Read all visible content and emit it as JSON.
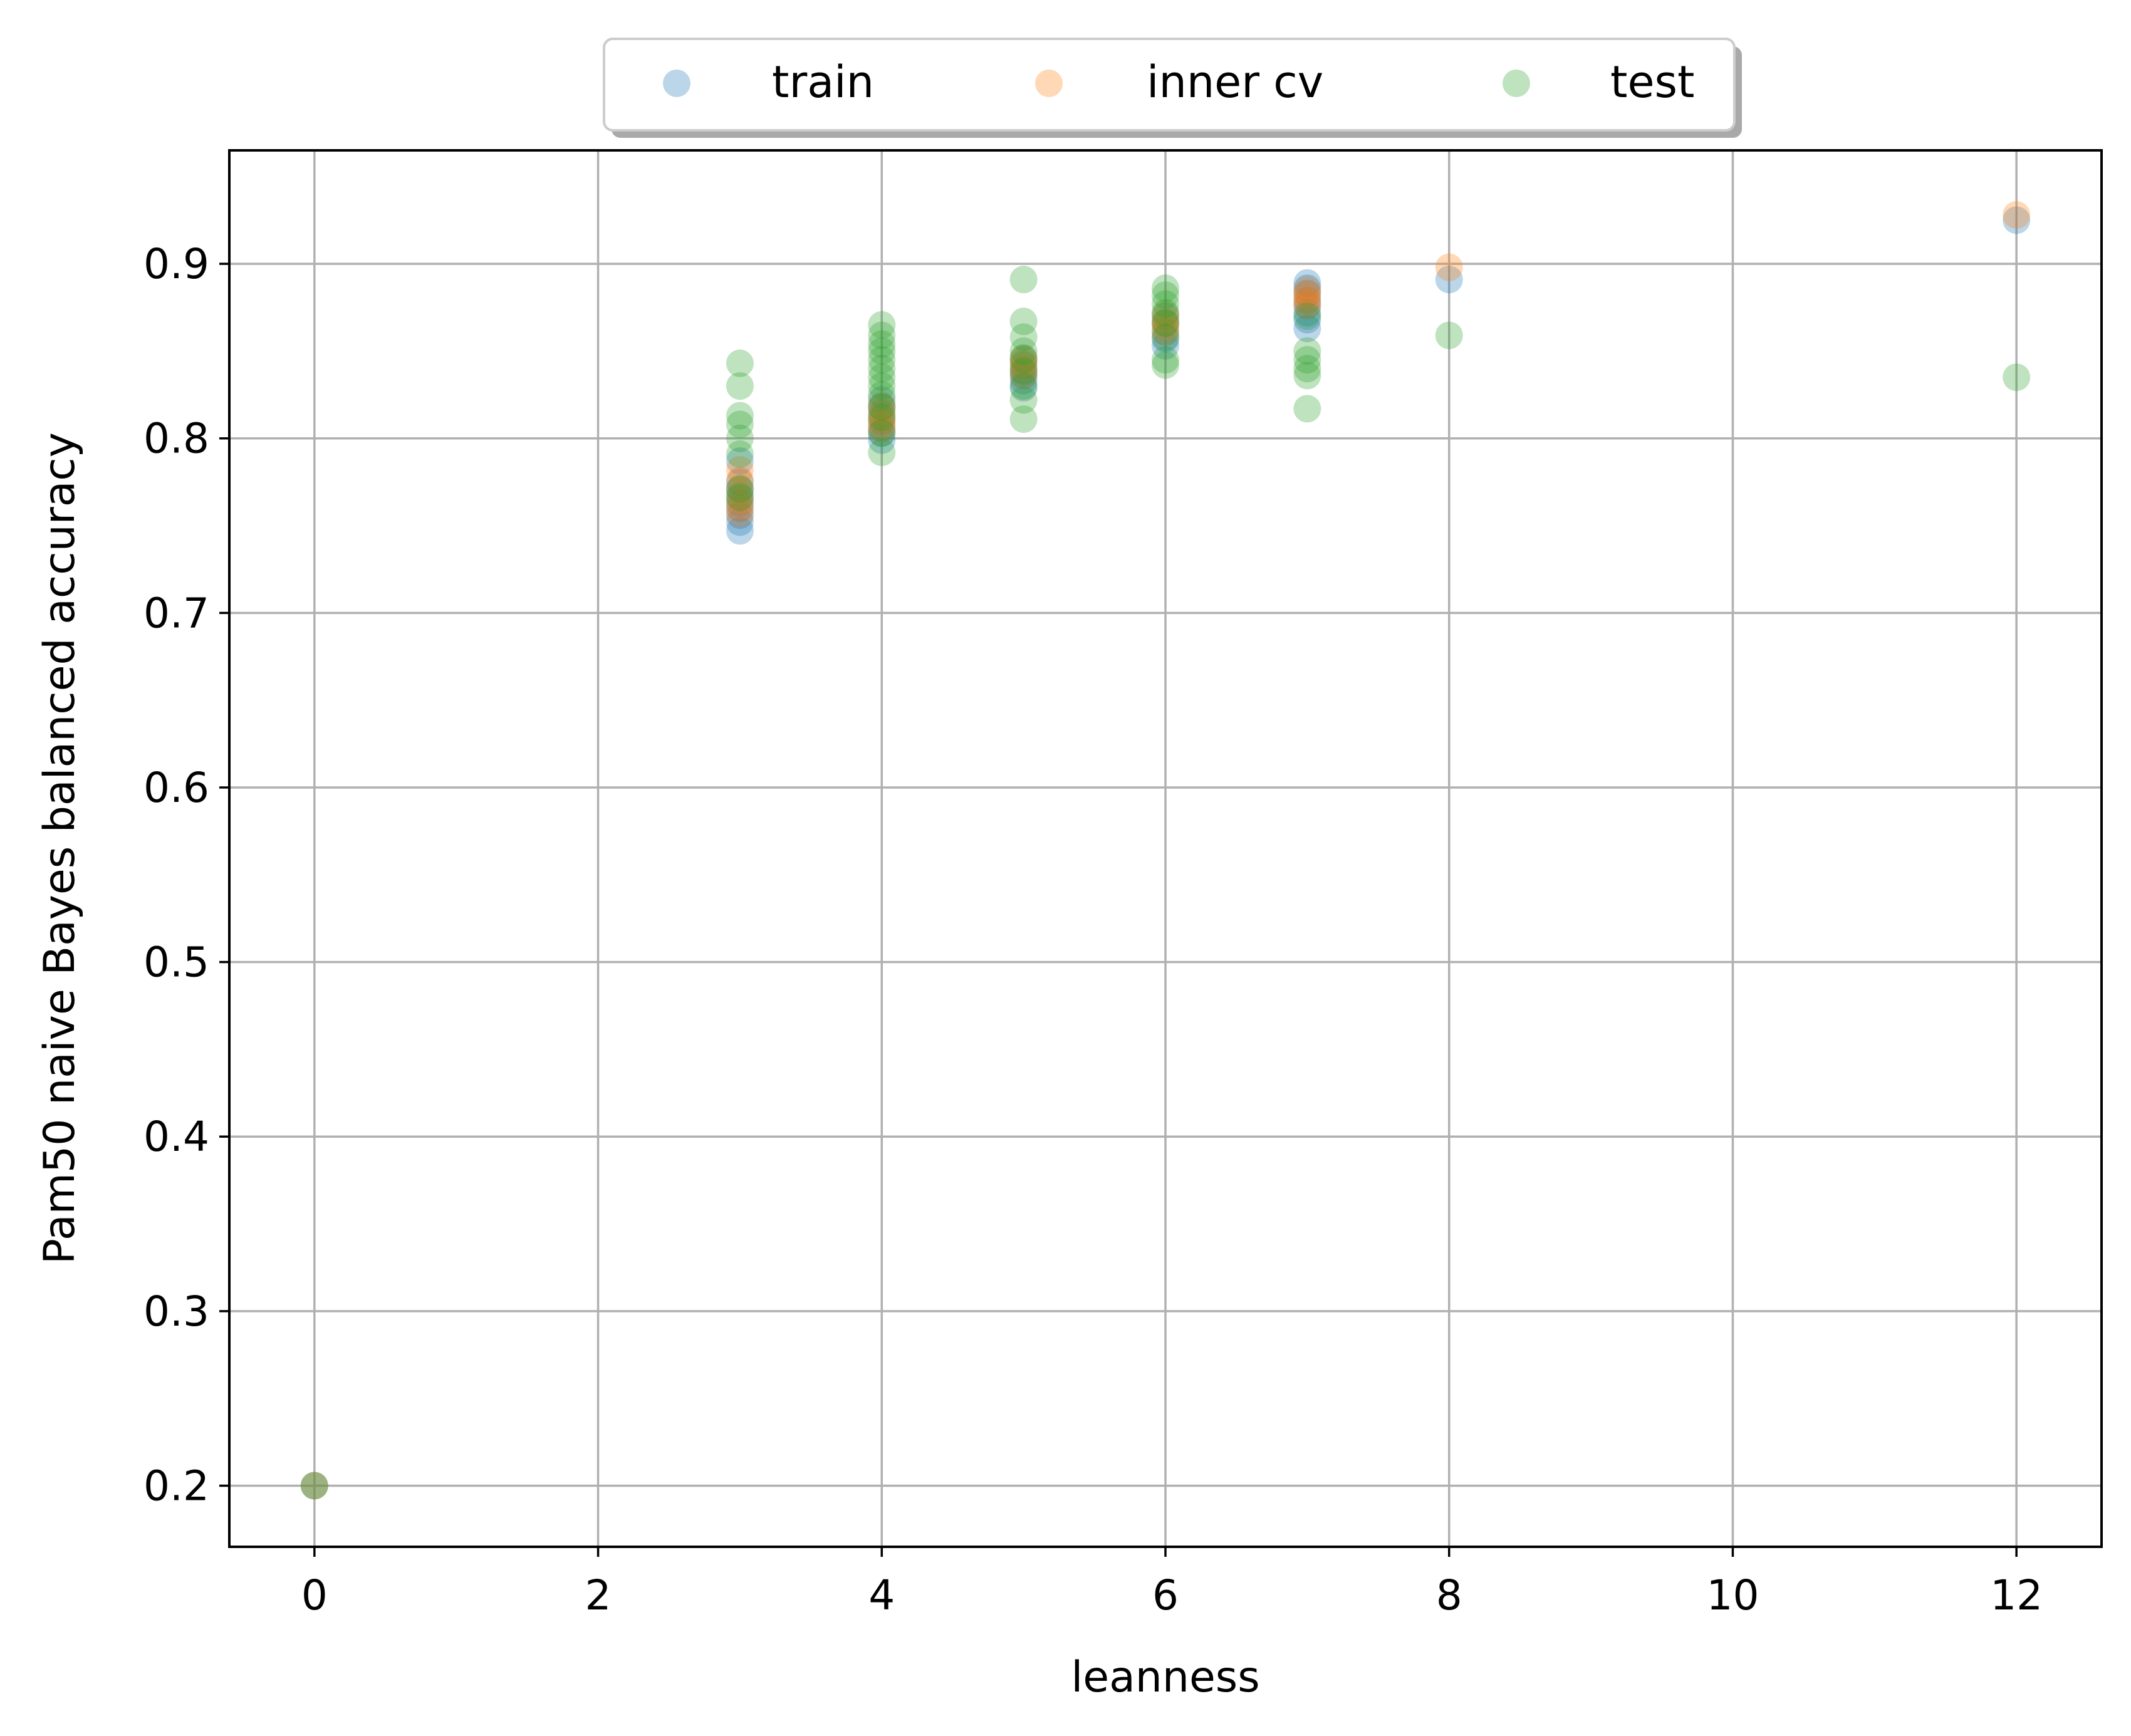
{
  "chart_data": {
    "type": "scatter",
    "xlabel": "leanness",
    "ylabel": "Pam50 naive Bayes balanced accuracy",
    "xlim": [
      -0.6,
      12.6
    ],
    "ylim": [
      0.165,
      0.965
    ],
    "xticks": [
      0,
      2,
      4,
      6,
      8,
      10,
      12
    ],
    "yticks": [
      0.2,
      0.3,
      0.4,
      0.5,
      0.6,
      0.7,
      0.8,
      0.9
    ],
    "xtick_labels": [
      "0",
      "2",
      "4",
      "6",
      "8",
      "10",
      "12"
    ],
    "ytick_labels": [
      "0.2",
      "0.3",
      "0.4",
      "0.5",
      "0.6",
      "0.7",
      "0.8",
      "0.9"
    ],
    "grid": true,
    "legend_position": "top-center, above plot",
    "series": [
      {
        "name": "train",
        "color": "#1f77b4",
        "points": [
          [
            0,
            0.2
          ],
          [
            3,
            0.747
          ],
          [
            3,
            0.752
          ],
          [
            3,
            0.756
          ],
          [
            3,
            0.76
          ],
          [
            3,
            0.763
          ],
          [
            3,
            0.767
          ],
          [
            3,
            0.771
          ],
          [
            3,
            0.775
          ],
          [
            3,
            0.787
          ],
          [
            4,
            0.799
          ],
          [
            4,
            0.803
          ],
          [
            4,
            0.806
          ],
          [
            4,
            0.81
          ],
          [
            4,
            0.814
          ],
          [
            4,
            0.818
          ],
          [
            4,
            0.822
          ],
          [
            5,
            0.829
          ],
          [
            5,
            0.833
          ],
          [
            5,
            0.836
          ],
          [
            5,
            0.839
          ],
          [
            5,
            0.842
          ],
          [
            5,
            0.846
          ],
          [
            6,
            0.853
          ],
          [
            6,
            0.857
          ],
          [
            6,
            0.861
          ],
          [
            6,
            0.866
          ],
          [
            6,
            0.87
          ],
          [
            7,
            0.863
          ],
          [
            7,
            0.868
          ],
          [
            7,
            0.872
          ],
          [
            7,
            0.876
          ],
          [
            7,
            0.879
          ],
          [
            7,
            0.883
          ],
          [
            7,
            0.886
          ],
          [
            7,
            0.889
          ],
          [
            8,
            0.891
          ],
          [
            12,
            0.925
          ]
        ]
      },
      {
        "name": "inner cv",
        "color": "#ff7f0e",
        "points": [
          [
            0,
            0.2
          ],
          [
            3,
            0.757
          ],
          [
            3,
            0.761
          ],
          [
            3,
            0.765
          ],
          [
            3,
            0.77
          ],
          [
            3,
            0.776
          ],
          [
            3,
            0.782
          ],
          [
            4,
            0.805
          ],
          [
            4,
            0.808
          ],
          [
            4,
            0.811
          ],
          [
            4,
            0.815
          ],
          [
            4,
            0.819
          ],
          [
            5,
            0.836
          ],
          [
            5,
            0.84
          ],
          [
            5,
            0.843
          ],
          [
            5,
            0.846
          ],
          [
            6,
            0.861
          ],
          [
            6,
            0.864
          ],
          [
            6,
            0.867
          ],
          [
            6,
            0.871
          ],
          [
            7,
            0.876
          ],
          [
            7,
            0.879
          ],
          [
            7,
            0.882
          ],
          [
            7,
            0.885
          ],
          [
            8,
            0.898
          ],
          [
            12,
            0.928
          ]
        ]
      },
      {
        "name": "test",
        "color": "#2ca02c",
        "points": [
          [
            0,
            0.2
          ],
          [
            3,
            0.766
          ],
          [
            3,
            0.771
          ],
          [
            3,
            0.791
          ],
          [
            3,
            0.8
          ],
          [
            3,
            0.808
          ],
          [
            3,
            0.813
          ],
          [
            3,
            0.83
          ],
          [
            3,
            0.843
          ],
          [
            4,
            0.792
          ],
          [
            4,
            0.803
          ],
          [
            4,
            0.812
          ],
          [
            4,
            0.818
          ],
          [
            4,
            0.825
          ],
          [
            4,
            0.83
          ],
          [
            4,
            0.835
          ],
          [
            4,
            0.84
          ],
          [
            4,
            0.845
          ],
          [
            4,
            0.85
          ],
          [
            4,
            0.854
          ],
          [
            4,
            0.859
          ],
          [
            4,
            0.865
          ],
          [
            5,
            0.811
          ],
          [
            5,
            0.822
          ],
          [
            5,
            0.83
          ],
          [
            5,
            0.838
          ],
          [
            5,
            0.845
          ],
          [
            5,
            0.85
          ],
          [
            5,
            0.858
          ],
          [
            5,
            0.867
          ],
          [
            5,
            0.891
          ],
          [
            6,
            0.842
          ],
          [
            6,
            0.845
          ],
          [
            6,
            0.858
          ],
          [
            6,
            0.866
          ],
          [
            6,
            0.872
          ],
          [
            6,
            0.877
          ],
          [
            6,
            0.882
          ],
          [
            6,
            0.886
          ],
          [
            7,
            0.817
          ],
          [
            7,
            0.836
          ],
          [
            7,
            0.84
          ],
          [
            7,
            0.845
          ],
          [
            7,
            0.85
          ],
          [
            7,
            0.87
          ],
          [
            8,
            0.859
          ],
          [
            12,
            0.835
          ]
        ]
      }
    ]
  }
}
